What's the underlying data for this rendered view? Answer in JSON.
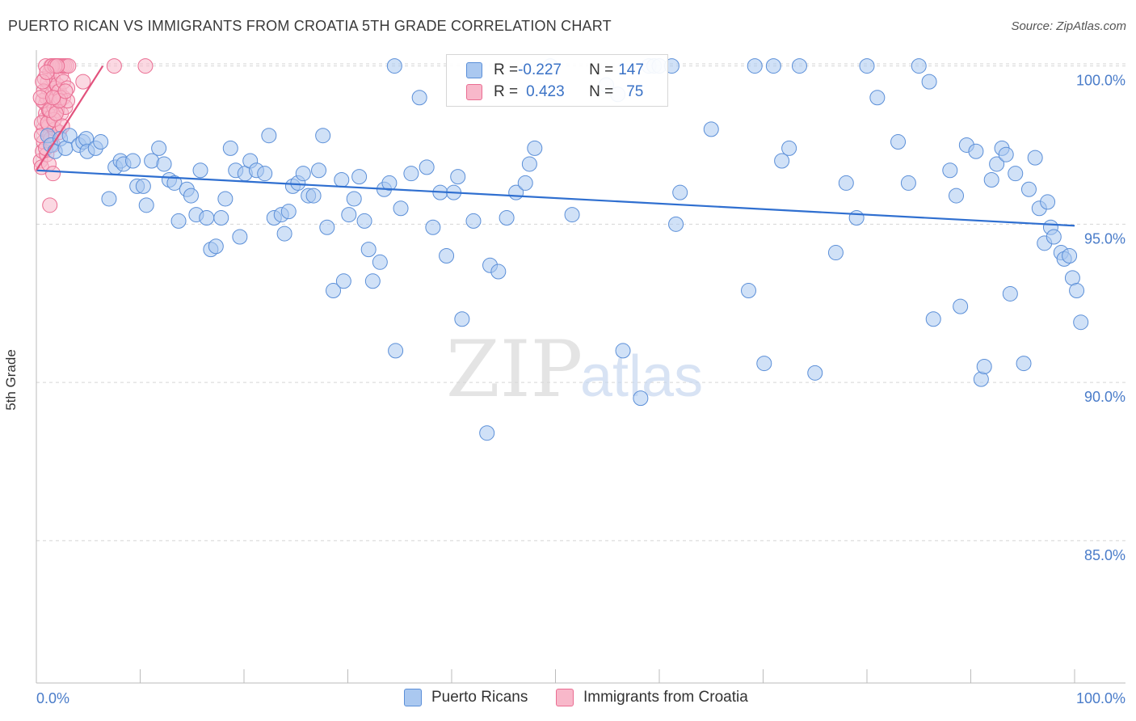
{
  "title": "PUERTO RICAN VS IMMIGRANTS FROM CROATIA 5TH GRADE CORRELATION CHART",
  "source": "Source: ZipAtlas.com",
  "watermark": {
    "zip": "ZIP",
    "atlas": "atlas"
  },
  "colors": {
    "blue_fill": "#aac8f0",
    "blue_stroke": "#5b8fd8",
    "blue_line": "#2f6fd0",
    "pink_fill": "#f8b8ca",
    "pink_stroke": "#ea6d92",
    "pink_line": "#e2527d",
    "grid": "#d5d5d5",
    "tick_text": "#4a7cc9"
  },
  "legend": {
    "rows": [
      {
        "r_label": "R = ",
        "r_value": "-0.227",
        "n_label": "N = ",
        "n_value": "147"
      },
      {
        "r_label": "R = ",
        "r_value": "0.423",
        "n_label": "N = ",
        "n_value": "75"
      }
    ]
  },
  "bottom_legend": [
    "Puerto Ricans",
    "Immigrants from Croatia"
  ],
  "chart_data": {
    "type": "scatter",
    "title": "PUERTO RICAN VS IMMIGRANTS FROM CROATIA 5TH GRADE CORRELATION CHART",
    "xlabel": "",
    "ylabel": "5th Grade",
    "xlim": [
      0,
      100
    ],
    "ylim": [
      80.5,
      100.5
    ],
    "x_tick_labels": [
      "0.0%",
      "100.0%"
    ],
    "y_ticks": [
      100,
      95,
      90,
      85
    ],
    "y_tick_labels": [
      "100.0%",
      "95.0%",
      "90.0%",
      "85.0%"
    ],
    "grid": "horizontal dashed",
    "legend_position": "top-center",
    "series": [
      {
        "name": "Puerto Ricans",
        "R": -0.227,
        "N": 147,
        "trend": {
          "x": [
            0,
            100
          ],
          "y": [
            96.7,
            94.95
          ]
        },
        "points": [
          [
            1.1,
            97.8
          ],
          [
            1.4,
            97.5
          ],
          [
            1.8,
            97.3
          ],
          [
            2.3,
            97.7
          ],
          [
            2.8,
            97.4
          ],
          [
            3.2,
            97.8
          ],
          [
            4.1,
            97.5
          ],
          [
            4.5,
            97.6
          ],
          [
            4.8,
            97.7
          ],
          [
            4.9,
            97.3
          ],
          [
            5.7,
            97.4
          ],
          [
            6.2,
            97.6
          ],
          [
            7.0,
            95.8
          ],
          [
            7.6,
            96.8
          ],
          [
            8.1,
            97.0
          ],
          [
            8.4,
            96.9
          ],
          [
            9.3,
            97.0
          ],
          [
            9.7,
            96.2
          ],
          [
            10.3,
            96.2
          ],
          [
            10.6,
            95.6
          ],
          [
            11.1,
            97.0
          ],
          [
            11.8,
            97.4
          ],
          [
            12.3,
            96.9
          ],
          [
            12.8,
            96.4
          ],
          [
            13.3,
            96.3
          ],
          [
            13.7,
            95.1
          ],
          [
            14.5,
            96.1
          ],
          [
            14.9,
            95.9
          ],
          [
            15.4,
            95.3
          ],
          [
            15.8,
            96.7
          ],
          [
            16.4,
            95.2
          ],
          [
            16.8,
            94.2
          ],
          [
            17.3,
            94.3
          ],
          [
            17.8,
            95.2
          ],
          [
            18.2,
            95.8
          ],
          [
            18.7,
            97.4
          ],
          [
            19.2,
            96.7
          ],
          [
            19.6,
            94.6
          ],
          [
            20.1,
            96.6
          ],
          [
            20.6,
            97.0
          ],
          [
            21.2,
            96.7
          ],
          [
            22.0,
            96.6
          ],
          [
            22.4,
            97.8
          ],
          [
            22.9,
            95.2
          ],
          [
            23.6,
            95.3
          ],
          [
            23.9,
            94.7
          ],
          [
            24.3,
            95.4
          ],
          [
            24.7,
            96.2
          ],
          [
            25.2,
            96.3
          ],
          [
            25.7,
            96.6
          ],
          [
            26.2,
            95.9
          ],
          [
            26.7,
            95.9
          ],
          [
            27.2,
            96.7
          ],
          [
            27.6,
            97.8
          ],
          [
            28.0,
            94.9
          ],
          [
            28.6,
            92.9
          ],
          [
            29.4,
            96.4
          ],
          [
            29.6,
            93.2
          ],
          [
            30.1,
            95.3
          ],
          [
            30.6,
            95.8
          ],
          [
            31.1,
            96.5
          ],
          [
            31.6,
            95.1
          ],
          [
            32.0,
            94.2
          ],
          [
            32.4,
            93.2
          ],
          [
            33.1,
            93.8
          ],
          [
            33.5,
            96.1
          ],
          [
            34.0,
            96.3
          ],
          [
            34.6,
            91.0
          ],
          [
            35.1,
            95.5
          ],
          [
            34.5,
            100.0
          ],
          [
            36.1,
            96.6
          ],
          [
            36.9,
            99.0
          ],
          [
            37.6,
            96.8
          ],
          [
            38.2,
            94.9
          ],
          [
            38.9,
            96.0
          ],
          [
            39.5,
            94.0
          ],
          [
            40.2,
            96.0
          ],
          [
            40.6,
            96.5
          ],
          [
            41.0,
            92.0
          ],
          [
            42.1,
            95.1
          ],
          [
            43.4,
            88.4
          ],
          [
            43.7,
            93.7
          ],
          [
            44.5,
            93.5
          ],
          [
            45.3,
            95.2
          ],
          [
            46.2,
            96.0
          ],
          [
            47.1,
            96.3
          ],
          [
            47.5,
            96.9
          ],
          [
            48.0,
            97.4
          ],
          [
            49.5,
            100.0
          ],
          [
            51.6,
            95.3
          ],
          [
            54.9,
            99.4
          ],
          [
            56.0,
            99.1
          ],
          [
            56.5,
            91.0
          ],
          [
            58.2,
            89.5
          ],
          [
            59.0,
            100.0
          ],
          [
            59.5,
            100.0
          ],
          [
            60.0,
            100.0
          ],
          [
            61.2,
            100.0
          ],
          [
            61.6,
            95.0
          ],
          [
            62.0,
            96.0
          ],
          [
            65.0,
            98.0
          ],
          [
            68.6,
            92.9
          ],
          [
            69.2,
            100.0
          ],
          [
            70.1,
            90.6
          ],
          [
            71.0,
            100.0
          ],
          [
            71.8,
            97.0
          ],
          [
            72.5,
            97.4
          ],
          [
            73.5,
            100.0
          ],
          [
            75.0,
            90.3
          ],
          [
            77.0,
            94.1
          ],
          [
            78.0,
            96.3
          ],
          [
            79.0,
            95.2
          ],
          [
            80.0,
            100.0
          ],
          [
            81.0,
            99.0
          ],
          [
            83.0,
            97.6
          ],
          [
            84.0,
            96.3
          ],
          [
            85.0,
            100.0
          ],
          [
            86.0,
            99.5
          ],
          [
            86.4,
            92.0
          ],
          [
            88.0,
            96.7
          ],
          [
            88.6,
            95.9
          ],
          [
            89.0,
            92.4
          ],
          [
            89.6,
            97.5
          ],
          [
            90.5,
            97.3
          ],
          [
            91.0,
            90.1
          ],
          [
            91.3,
            90.5
          ],
          [
            92.0,
            96.4
          ],
          [
            92.5,
            96.9
          ],
          [
            93.0,
            97.4
          ],
          [
            93.4,
            97.2
          ],
          [
            93.8,
            92.8
          ],
          [
            94.3,
            96.6
          ],
          [
            95.1,
            90.6
          ],
          [
            95.6,
            96.1
          ],
          [
            96.2,
            97.1
          ],
          [
            96.6,
            95.5
          ],
          [
            97.1,
            94.4
          ],
          [
            97.4,
            95.7
          ],
          [
            97.7,
            94.9
          ],
          [
            98.0,
            94.6
          ],
          [
            98.7,
            94.1
          ],
          [
            99.0,
            93.9
          ],
          [
            99.5,
            94.0
          ],
          [
            99.8,
            93.3
          ],
          [
            100.2,
            92.9
          ],
          [
            100.6,
            91.9
          ]
        ]
      },
      {
        "name": "Immigrants from Croatia",
        "R": 0.423,
        "N": 75,
        "trend": {
          "x": [
            0,
            6.4
          ],
          "y": [
            96.7,
            100.0
          ]
        },
        "points": [
          [
            0.4,
            97.0
          ],
          [
            0.5,
            96.8
          ],
          [
            0.6,
            97.3
          ],
          [
            0.7,
            97.6
          ],
          [
            0.7,
            98.0
          ],
          [
            0.8,
            98.3
          ],
          [
            0.9,
            98.5
          ],
          [
            0.9,
            98.8
          ],
          [
            1.0,
            99.0
          ],
          [
            1.1,
            99.3
          ],
          [
            1.1,
            99.5
          ],
          [
            1.2,
            98.6
          ],
          [
            1.2,
            98.1
          ],
          [
            1.3,
            97.8
          ],
          [
            1.3,
            99.8
          ],
          [
            1.4,
            100.0
          ],
          [
            1.4,
            98.9
          ],
          [
            1.5,
            99.1
          ],
          [
            1.5,
            98.4
          ],
          [
            1.6,
            97.5
          ],
          [
            1.6,
            99.6
          ],
          [
            1.7,
            100.0
          ],
          [
            1.7,
            98.7
          ],
          [
            1.8,
            99.3
          ],
          [
            1.8,
            98.0
          ],
          [
            1.9,
            100.0
          ],
          [
            1.9,
            99.0
          ],
          [
            2.0,
            98.6
          ],
          [
            2.0,
            99.4
          ],
          [
            2.1,
            100.0
          ],
          [
            2.1,
            98.8
          ],
          [
            2.2,
            99.2
          ],
          [
            2.2,
            97.9
          ],
          [
            2.3,
            100.0
          ],
          [
            2.4,
            99.7
          ],
          [
            2.4,
            98.5
          ],
          [
            2.5,
            100.0
          ],
          [
            2.6,
            99.0
          ],
          [
            2.6,
            99.5
          ],
          [
            2.7,
            100.0
          ],
          [
            2.8,
            98.7
          ],
          [
            2.9,
            100.0
          ],
          [
            3.0,
            99.3
          ],
          [
            3.1,
            100.0
          ],
          [
            0.5,
            98.2
          ],
          [
            0.6,
            98.9
          ],
          [
            0.8,
            99.6
          ],
          [
            1.0,
            97.2
          ],
          [
            1.2,
            96.9
          ],
          [
            1.4,
            97.7
          ],
          [
            1.6,
            96.6
          ],
          [
            1.3,
            95.6
          ],
          [
            0.9,
            100.0
          ],
          [
            1.5,
            100.0
          ],
          [
            1.8,
            100.0
          ],
          [
            2.0,
            100.0
          ],
          [
            2.3,
            99.0
          ],
          [
            0.7,
            99.2
          ],
          [
            1.1,
            98.2
          ],
          [
            1.7,
            98.3
          ],
          [
            3.0,
            98.9
          ],
          [
            4.5,
            99.5
          ],
          [
            7.5,
            100.0
          ],
          [
            10.5,
            100.0
          ],
          [
            0.4,
            99.0
          ],
          [
            0.6,
            99.5
          ],
          [
            0.9,
            97.4
          ],
          [
            1.3,
            98.6
          ],
          [
            2.5,
            98.1
          ],
          [
            1.9,
            98.5
          ],
          [
            1.0,
            99.8
          ],
          [
            0.5,
            97.8
          ],
          [
            2.2,
            98.9
          ],
          [
            1.6,
            99.0
          ],
          [
            2.8,
            99.2
          ]
        ]
      }
    ]
  }
}
